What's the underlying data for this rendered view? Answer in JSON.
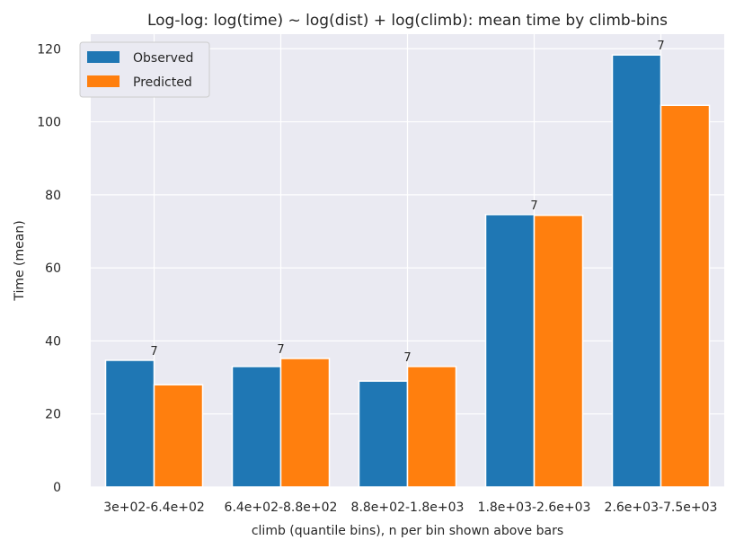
{
  "chart_data": {
    "type": "bar",
    "title": "Log-log: log(time) ~ log(dist) + log(climb): mean time by climb-bins",
    "xlabel": "climb (quantile bins), n per bin shown above bars",
    "ylabel": "Time (mean)",
    "categories": [
      "3e+02-6.4e+02",
      "6.4e+02-8.8e+02",
      "8.8e+02-1.8e+03",
      "1.8e+03-2.6e+03",
      "2.6e+03-7.5e+03"
    ],
    "series": [
      {
        "name": "Observed",
        "values": [
          34.7,
          33.0,
          29.0,
          74.6,
          118.3
        ],
        "color": "#1f77b4"
      },
      {
        "name": "Predicted",
        "values": [
          28.0,
          35.2,
          33.0,
          74.4,
          104.5
        ],
        "color": "#ff7f0e"
      }
    ],
    "counts": [
      "7",
      "7",
      "7",
      "7",
      "7"
    ],
    "ylim": [
      0,
      124
    ],
    "yticks": [
      "0",
      "20",
      "40",
      "60",
      "80",
      "100",
      "120"
    ],
    "ytick_values": [
      0,
      20,
      40,
      60,
      80,
      100,
      120
    ],
    "grid": true,
    "legend_position": "top-left",
    "background_color": "#eaeaf2"
  }
}
